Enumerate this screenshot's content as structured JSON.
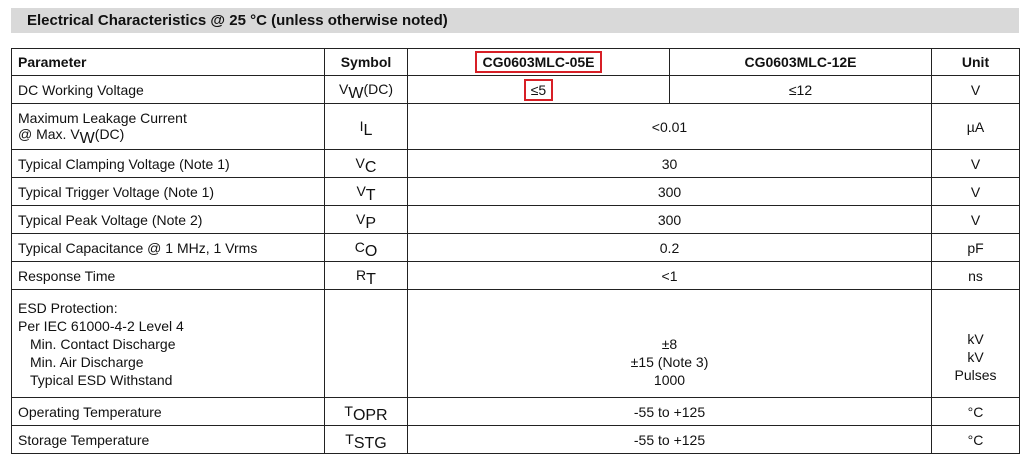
{
  "title": "Electrical Characteristics @ 25 °C (unless otherwise noted)",
  "header": {
    "parameter": "Parameter",
    "symbol": "Symbol",
    "part_a": "CG0603MLC-05E",
    "part_b": "CG0603MLC-12E",
    "unit": "Unit"
  },
  "rows": {
    "dc_working_voltage": {
      "parameter": "DC Working Voltage",
      "symbol_main": "V",
      "symbol_sub": "W",
      "symbol_suffix": "(DC)",
      "value_a": "≤5",
      "value_b": "≤12",
      "unit": "V"
    },
    "max_leakage_current": {
      "parameter_line1": "Maximum Leakage Current",
      "parameter_line2_prefix": "@ Max. V",
      "parameter_line2_sub": "W",
      "parameter_line2_suffix": "(DC)",
      "symbol_main": "I",
      "symbol_sub": "L",
      "value": "<0.01",
      "unit": "µA"
    },
    "clamping_voltage": {
      "parameter": "Typical Clamping Voltage (Note 1)",
      "symbol_main": "V",
      "symbol_sub": "C",
      "value": "30",
      "unit": "V"
    },
    "trigger_voltage": {
      "parameter": "Typical Trigger Voltage (Note 1)",
      "symbol_main": "V",
      "symbol_sub": "T",
      "value": "300",
      "unit": "V"
    },
    "peak_voltage": {
      "parameter": "Typical Peak Voltage (Note 2)",
      "symbol_main": "V",
      "symbol_sub": "P",
      "value": "300",
      "unit": "V"
    },
    "capacitance": {
      "parameter": "Typical Capacitance @ 1 MHz, 1 Vrms",
      "symbol_main": "C",
      "symbol_sub": "O",
      "value": "0.2",
      "unit": "pF"
    },
    "response_time": {
      "parameter": "Response Time",
      "symbol_main": "R",
      "symbol_sub": "T",
      "value": "<1",
      "unit": "ns"
    },
    "esd_protection": {
      "parameter_line1": "ESD Protection:",
      "parameter_line2": "Per IEC 61000-4-2 Level 4",
      "parameter_line3": "Min. Contact Discharge",
      "parameter_line4": "Min. Air Discharge",
      "parameter_line5": "Typical ESD Withstand",
      "value_line1": "±8",
      "value_line2": "±15 (Note 3)",
      "value_line3": "1000",
      "unit_line1": "kV",
      "unit_line2": "kV",
      "unit_line3": "Pulses"
    },
    "operating_temperature": {
      "parameter": "Operating Temperature",
      "symbol_main": "T",
      "symbol_sub": "OPR",
      "value": "-55 to +125",
      "unit": "°C"
    },
    "storage_temperature": {
      "parameter": "Storage Temperature",
      "symbol_main": "T",
      "symbol_sub": "STG",
      "value": "-55 to +125",
      "unit": "°C"
    }
  },
  "colors": {
    "title_background": "#d9d9d9",
    "highlight": "#d71f26",
    "border": "#222222"
  }
}
